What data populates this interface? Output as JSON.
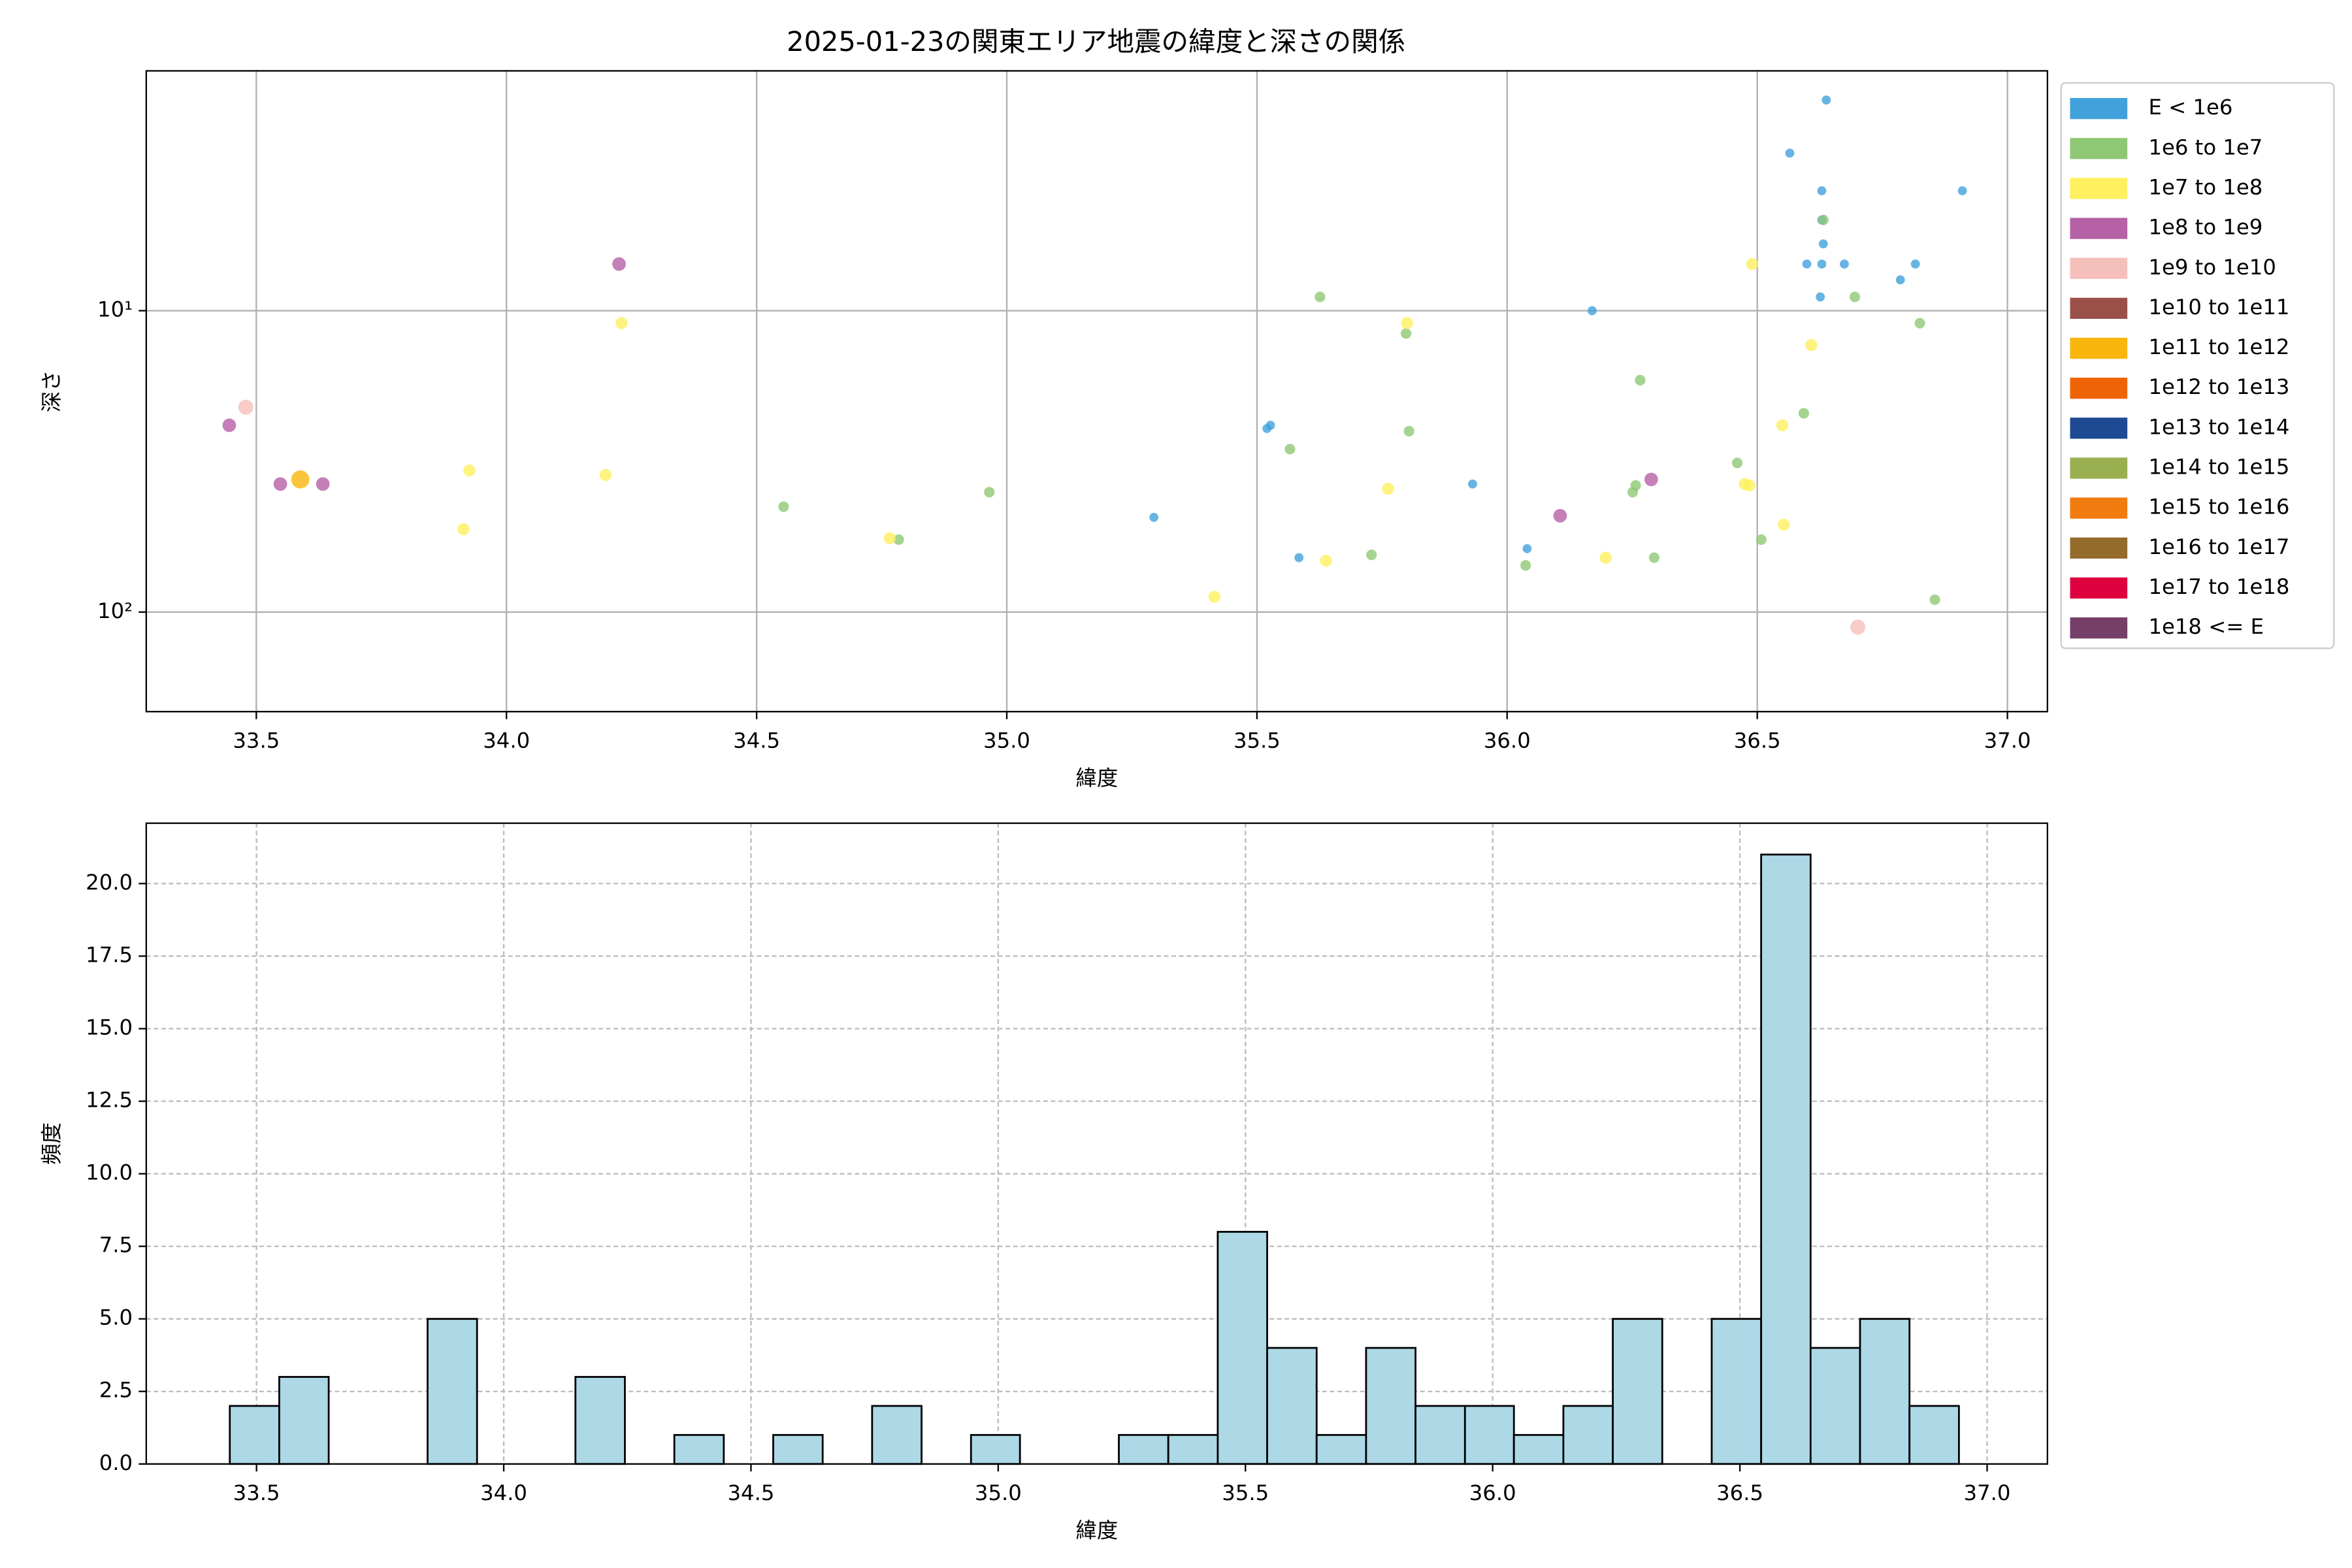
{
  "chart_data": [
    {
      "type": "scatter",
      "title": "2025-01-23の関東エリア地震の緯度と深さの関係",
      "x_label": "緯度",
      "y_label": "深さ",
      "xlim": [
        33.28,
        37.08
      ],
      "ylim": [
        1.6,
        214
      ],
      "log_y": true,
      "y_inverted": true,
      "grid": true,
      "legend": "outside-right",
      "xticks": [
        33.5,
        {
          "value": 34,
          "label": "34.0"
        },
        34.5,
        {
          "value": 35,
          "label": "35.0"
        },
        35.5,
        {
          "value": 36,
          "label": "36.0"
        },
        36.5,
        {
          "value": 37,
          "label": "37.0"
        }
      ],
      "yticks": [
        {
          "value": 10,
          "label": "10¹"
        },
        {
          "value": 100,
          "label": "10²"
        }
      ],
      "series": [
        {
          "name": "E < 1e6",
          "color": "#41a1db",
          "x": [
            36.638,
            36.565,
            36.629,
            36.629,
            36.632,
            36.599,
            36.629,
            36.674,
            36.816,
            36.786,
            36.626,
            36.91,
            36.17,
            35.52,
            35.527,
            35.931,
            35.294,
            36.04,
            35.584
          ],
          "values": [
            2.0,
            3.0,
            4.0,
            5.0,
            6.0,
            7.0,
            7.0,
            7.0,
            7.0,
            7.9,
            9.0,
            4.0,
            10.0,
            24.6,
            24.0,
            37.6,
            48.5,
            61.6,
            66.0
          ]
        },
        {
          "name": "1e6 to 1e7",
          "color": "#8fc874",
          "x": [
            36.632,
            36.695,
            35.626,
            36.825,
            35.798,
            36.266,
            36.593,
            35.804,
            35.566,
            36.46,
            36.257,
            36.251,
            34.965,
            34.554,
            36.508,
            34.784,
            35.729,
            36.294,
            36.037,
            36.855
          ],
          "values": [
            5.0,
            9.0,
            9.0,
            11.0,
            11.9,
            17.0,
            21.9,
            25.1,
            28.8,
            32.0,
            38.0,
            40.0,
            40.0,
            44.7,
            57.5,
            57.5,
            64.6,
            66.0,
            70.0,
            91.0
          ]
        },
        {
          "name": "1e7 to 1e8",
          "color": "#fef05e",
          "x": [
            36.49,
            34.23,
            35.8,
            36.608,
            36.55,
            33.926,
            34.198,
            36.475,
            36.484,
            35.762,
            36.553,
            33.914,
            34.766,
            36.197,
            35.638,
            35.415
          ],
          "values": [
            7.0,
            11.0,
            11.0,
            13.0,
            24.0,
            33.9,
            35.1,
            37.6,
            38.0,
            39.0,
            51.3,
            53.1,
            56.9,
            66.0,
            67.6,
            89.0
          ]
        },
        {
          "name": "1e8 to 1e9",
          "color": "#b660a6",
          "x": [
            34.225,
            33.446,
            33.548,
            33.633,
            36.288,
            36.106
          ],
          "values": [
            7.0,
            24.0,
            37.6,
            37.6,
            36.3,
            47.9
          ]
        },
        {
          "name": "1e9 to 1e10",
          "color": "#f5bfbc",
          "x": [
            33.479,
            36.701
          ],
          "values": [
            20.9,
            112.2
          ]
        },
        {
          "name": "1e10 to 1e11",
          "color": "#9a5049",
          "x": [],
          "values": []
        },
        {
          "name": "1e11 to 1e12",
          "color": "#f9b60d",
          "x": [
            33.588
          ],
          "values": [
            36.3
          ]
        },
        {
          "name": "1e12 to 1e13",
          "color": "#ef6307",
          "x": [],
          "values": []
        },
        {
          "name": "1e13 to 1e14",
          "color": "#1d4a93",
          "x": [],
          "values": []
        },
        {
          "name": "1e14 to 1e15",
          "color": "#9aaf50",
          "x": [],
          "values": []
        },
        {
          "name": "1e15 to 1e16",
          "color": "#f07c0f",
          "x": [],
          "values": []
        },
        {
          "name": "1e16 to 1e17",
          "color": "#946b2a",
          "x": [],
          "values": []
        },
        {
          "name": "1e17 to 1e18",
          "color": "#dd0140",
          "x": [],
          "values": []
        },
        {
          "name": "1e18 <= E",
          "color": "#753f6a",
          "x": [],
          "values": []
        }
      ]
    },
    {
      "type": "histogram",
      "x_label": "緯度",
      "y_label": "頻度",
      "xlim": [
        33.277,
        37.122
      ],
      "ylim": [
        0,
        22.08
      ],
      "grid": true,
      "color": "#add8e6",
      "edgecolor": "#000000",
      "xticks": [
        33.5,
        {
          "value": 34,
          "label": "34.0"
        },
        34.5,
        {
          "value": 35,
          "label": "35.0"
        },
        35.5,
        {
          "value": 36,
          "label": "36.0"
        },
        36.5,
        {
          "value": 37,
          "label": "37.0"
        }
      ],
      "yticks": [
        {
          "value": 0,
          "label": "0.0"
        },
        2.5,
        {
          "value": 5,
          "label": "5.0"
        },
        7.5,
        {
          "value": 10,
          "label": "10.0"
        },
        12.5,
        {
          "value": 15,
          "label": "15.0"
        },
        17.5,
        {
          "value": 20,
          "label": "20.0"
        }
      ],
      "bins": [
        33.446,
        33.546,
        33.646,
        33.746,
        33.846,
        33.946,
        34.045,
        34.145,
        34.245,
        34.345,
        34.445,
        34.545,
        34.645,
        34.745,
        34.845,
        34.945,
        35.044,
        35.144,
        35.244,
        35.344,
        35.444,
        35.544,
        35.644,
        35.744,
        35.844,
        35.944,
        36.043,
        36.143,
        36.243,
        36.343,
        36.443,
        36.543,
        36.643,
        36.743,
        36.843,
        36.943
      ],
      "values": [
        2,
        3,
        0,
        0,
        5,
        0,
        0,
        3,
        0,
        1,
        0,
        1,
        0,
        2,
        0,
        1,
        0,
        0,
        1,
        1,
        8,
        4,
        1,
        4,
        2,
        2,
        1,
        2,
        5,
        0,
        5,
        21,
        4,
        5,
        2
      ]
    }
  ]
}
